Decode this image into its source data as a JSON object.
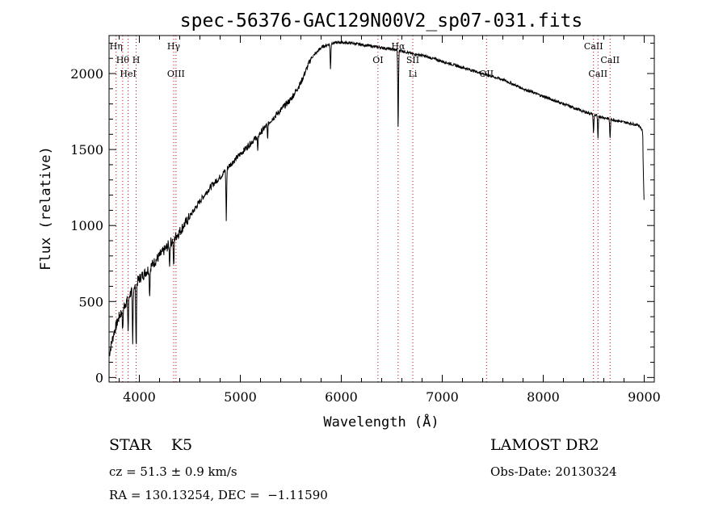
{
  "chart_data": {
    "type": "line",
    "title": "spec-56376-GAC129N00V2_sp07-031.fits",
    "xlabel": "Wavelength (Å)",
    "ylabel": "Flux (relative)",
    "xlim": [
      3700,
      9100
    ],
    "ylim": [
      -30,
      2250
    ],
    "x_ticks": [
      "4000",
      "5000",
      "6000",
      "7000",
      "8000",
      "9000"
    ],
    "x_tick_values": [
      4000,
      5000,
      6000,
      7000,
      8000,
      9000
    ],
    "y_ticks": [
      "0",
      "500",
      "1000",
      "1500",
      "2000"
    ],
    "y_tick_values": [
      0,
      500,
      1000,
      1500,
      2000
    ],
    "grid": false,
    "line_color": "#000000",
    "marker_color": "#cc0000",
    "continuum": [
      [
        3700,
        150
      ],
      [
        3750,
        300
      ],
      [
        3800,
        400
      ],
      [
        3850,
        470
      ],
      [
        3900,
        540
      ],
      [
        3950,
        600
      ],
      [
        4000,
        650
      ],
      [
        4100,
        720
      ],
      [
        4200,
        800
      ],
      [
        4300,
        880
      ],
      [
        4400,
        960
      ],
      [
        4500,
        1060
      ],
      [
        4600,
        1160
      ],
      [
        4700,
        1250
      ],
      [
        4800,
        1320
      ],
      [
        4900,
        1400
      ],
      [
        5000,
        1470
      ],
      [
        5100,
        1540
      ],
      [
        5200,
        1610
      ],
      [
        5300,
        1690
      ],
      [
        5400,
        1760
      ],
      [
        5500,
        1830
      ],
      [
        5600,
        1940
      ],
      [
        5700,
        2100
      ],
      [
        5800,
        2170
      ],
      [
        5900,
        2200
      ],
      [
        6000,
        2205
      ],
      [
        6100,
        2200
      ],
      [
        6200,
        2190
      ],
      [
        6300,
        2180
      ],
      [
        6400,
        2170
      ],
      [
        6500,
        2160
      ],
      [
        6600,
        2150
      ],
      [
        6700,
        2130
      ],
      [
        6800,
        2120
      ],
      [
        6900,
        2100
      ],
      [
        7000,
        2080
      ],
      [
        7200,
        2040
      ],
      [
        7400,
        2000
      ],
      [
        7600,
        1960
      ],
      [
        7800,
        1900
      ],
      [
        8000,
        1850
      ],
      [
        8200,
        1800
      ],
      [
        8400,
        1750
      ],
      [
        8600,
        1710
      ],
      [
        8800,
        1680
      ],
      [
        8950,
        1660
      ],
      [
        8985,
        1620
      ],
      [
        8990,
        1400
      ],
      [
        9000,
        1100
      ]
    ],
    "absorption": [
      {
        "x": 3835,
        "depth": 150
      },
      {
        "x": 3889,
        "depth": 220
      },
      {
        "x": 3934,
        "depth": 380
      },
      {
        "x": 3968,
        "depth": 430
      },
      {
        "x": 4102,
        "depth": 180
      },
      {
        "x": 4300,
        "depth": 130
      },
      {
        "x": 4340,
        "depth": 200
      },
      {
        "x": 4861,
        "depth": 330
      },
      {
        "x": 5173,
        "depth": 110
      },
      {
        "x": 5270,
        "depth": 90
      },
      {
        "x": 5893,
        "depth": 170
      },
      {
        "x": 6563,
        "depth": 520
      },
      {
        "x": 8498,
        "depth": 120
      },
      {
        "x": 8542,
        "depth": 150
      },
      {
        "x": 8662,
        "depth": 130
      }
    ],
    "line_markers": [
      {
        "x": 3770,
        "label": "Hη",
        "row": 0
      },
      {
        "x": 3835,
        "label": "Hθ",
        "row": 1
      },
      {
        "x": 3889,
        "label": "HeI",
        "row": 2
      },
      {
        "x": 3968,
        "label": "H",
        "row": 1
      },
      {
        "x": 4340,
        "label": "Hγ",
        "row": 0
      },
      {
        "x": 4363,
        "label": "OIII",
        "row": 2
      },
      {
        "x": 6363,
        "label": "OI",
        "row": 1
      },
      {
        "x": 6563,
        "label": "Hα",
        "row": 0
      },
      {
        "x": 6708,
        "label": "SII",
        "row": 1
      },
      {
        "x": 6708,
        "label": "Li",
        "row": 2
      },
      {
        "x": 7438,
        "label": "OII",
        "row": 2
      },
      {
        "x": 8498,
        "label": "CaII",
        "row": 0
      },
      {
        "x": 8542,
        "label": "CaII",
        "row": 2
      },
      {
        "x": 8662,
        "label": "CaII",
        "row": 1
      }
    ]
  },
  "info": {
    "class_line": "STAR    K5",
    "survey": "LAMOST DR2",
    "cz_line": "cz = 51.3 ± 0.9 km/s",
    "obs_date": "Obs-Date: 20130324",
    "radec_line": "RA = 130.13254, DEC =  −1.11590"
  }
}
